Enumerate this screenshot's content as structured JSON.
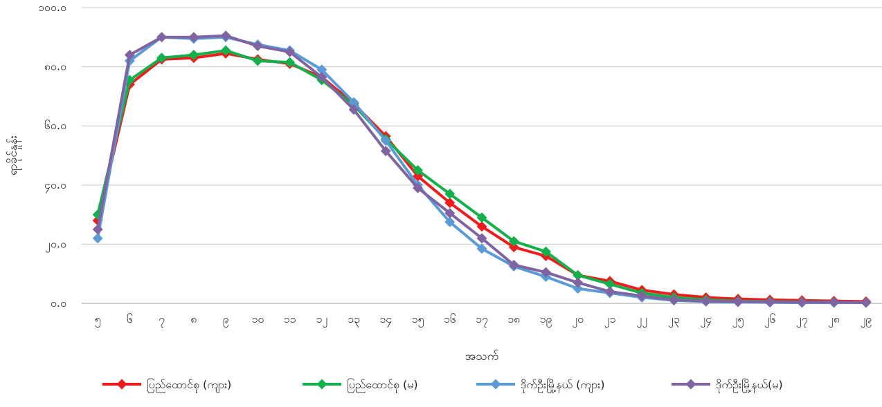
{
  "chart_data": {
    "type": "line",
    "title": "",
    "xlabel": "အသက်",
    "ylabel": "ရာခိုင်နှုန်း",
    "ylim": [
      0,
      100
    ],
    "y_ticks": [
      0,
      20,
      40,
      60,
      80,
      100
    ],
    "y_tick_labels": [
      "၀.၀",
      "၂၀.၀",
      "၄၀.၀",
      "၆၀.၀",
      "၈၀.၀",
      "၁၀၀.၀"
    ],
    "x": [
      5,
      6,
      7,
      8,
      9,
      10,
      11,
      12,
      13,
      14,
      15,
      16,
      17,
      18,
      19,
      20,
      21,
      22,
      23,
      24,
      25,
      26,
      27,
      28,
      29
    ],
    "categories": [
      "၅",
      "၆",
      "၇",
      "၈",
      "၉",
      "၁၀",
      "၁၁",
      "၁၂",
      "၁၃",
      "၁၄",
      "၁၅",
      "၁၆",
      "၁၇",
      "၁၈",
      "၁၉",
      "၂၀",
      "၂၁",
      "၂၂",
      "၂၃",
      "၂၄",
      "၂၅",
      "၂၆",
      "၂၇",
      "၂၈",
      "၂၉"
    ],
    "grid": true,
    "legend_position": "bottom",
    "series": [
      {
        "name": "ပြည်ထောင်စု (ကျား)",
        "color": "#ee1c1c",
        "values": [
          28.0,
          74.0,
          82.5,
          83.0,
          84.5,
          82.5,
          81.0,
          76.5,
          67.5,
          56.5,
          43.0,
          34.0,
          26.0,
          19.0,
          16.0,
          9.5,
          7.5,
          4.5,
          3.0,
          2.0,
          1.5,
          1.2,
          1.0,
          0.8,
          0.6
        ]
      },
      {
        "name": "ပြည်ထောင်စု (မ)",
        "color": "#12b14b",
        "values": [
          30.0,
          75.5,
          83.0,
          84.0,
          85.5,
          82.0,
          81.5,
          75.5,
          67.0,
          55.5,
          45.0,
          37.0,
          29.0,
          21.0,
          17.5,
          9.5,
          6.5,
          3.5,
          2.0,
          1.2,
          0.8,
          0.6,
          0.5,
          0.4,
          0.3
        ]
      },
      {
        "name": "ဒိုက်ဦးမြို့နယ် (ကျား)",
        "color": "#5b9bd5",
        "values": [
          22.0,
          82.0,
          90.0,
          89.5,
          90.0,
          87.5,
          85.5,
          79.0,
          68.0,
          55.0,
          40.0,
          27.5,
          18.5,
          12.5,
          9.0,
          5.0,
          3.5,
          2.0,
          1.0,
          0.6,
          0.4,
          0.3,
          0.2,
          0.2,
          0.2
        ]
      },
      {
        "name": "ဒိုက်ဦးမြို့နယ်(မ)",
        "color": "#8064a2",
        "values": [
          25.0,
          84.0,
          90.0,
          90.0,
          90.5,
          87.0,
          85.0,
          76.5,
          65.5,
          51.5,
          39.0,
          30.5,
          22.0,
          13.0,
          10.5,
          7.0,
          4.0,
          2.5,
          1.2,
          0.8,
          0.6,
          0.5,
          0.4,
          0.4,
          0.3
        ]
      }
    ]
  }
}
